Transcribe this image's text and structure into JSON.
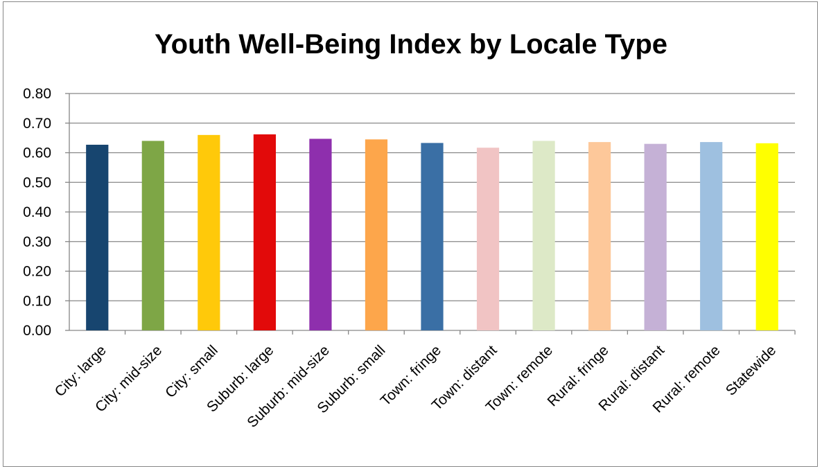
{
  "chart_data": {
    "type": "bar",
    "title": "Youth Well-Being Index by Locale Type",
    "xlabel": "",
    "ylabel": "",
    "ylim": [
      0,
      0.8
    ],
    "yticks": [
      "0.00",
      "0.10",
      "0.20",
      "0.30",
      "0.40",
      "0.50",
      "0.60",
      "0.70",
      "0.80"
    ],
    "grid": true,
    "legend": "none",
    "categories": [
      "City: large",
      "City: mid-size",
      "City: small",
      "Suburb: large",
      "Suburb: mid-size",
      "Suburb: small",
      "Town: fringe",
      "Town: distant",
      "Town: remote",
      "Rural: fringe",
      "Rural: distant",
      "Rural: remote",
      "Statewide"
    ],
    "values": [
      0.627,
      0.64,
      0.66,
      0.662,
      0.647,
      0.645,
      0.633,
      0.617,
      0.64,
      0.636,
      0.63,
      0.636,
      0.632
    ],
    "colors": [
      "#17456f",
      "#7ea646",
      "#ffc90a",
      "#e20a0a",
      "#8e2fad",
      "#fda64b",
      "#3a6fa5",
      "#f1c4c4",
      "#dde9c7",
      "#fdc89a",
      "#c5b1d6",
      "#9ec0e0",
      "#ffff00"
    ]
  }
}
